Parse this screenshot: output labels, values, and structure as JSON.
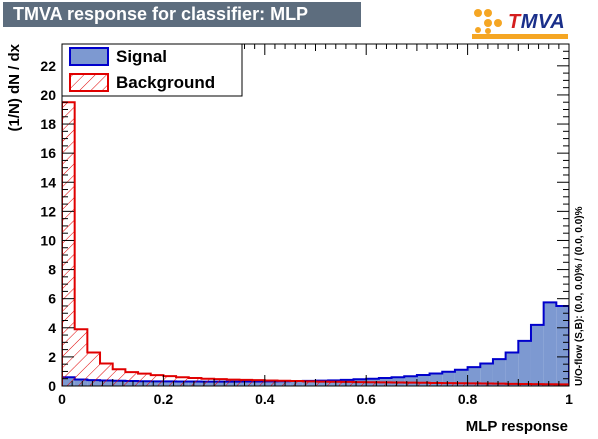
{
  "title": "TMVA response for classifier: MLP",
  "logo": {
    "t": "T",
    "rest": "MVA"
  },
  "colors": {
    "title_bg": "#5d6d7e",
    "signal_fill": "#7d99d1",
    "signal_line": "#0000cc",
    "background_line": "#e00000"
  },
  "side_note": "U/O-flow (S,B): (0.0, 0.0)% / (0.0, 0.0)%",
  "chart_data": {
    "type": "histogram",
    "title": "TMVA response for classifier: MLP",
    "xlabel": "MLP response",
    "ylabel": "(1/N) dN / dx",
    "xlim": [
      0,
      1
    ],
    "ylim": [
      0,
      23.5
    ],
    "xticks": [
      0,
      0.2,
      0.4,
      0.6,
      0.8,
      1
    ],
    "xtick_labels": [
      "0",
      "0.2",
      "0.4",
      "0.6",
      "0.8",
      "1"
    ],
    "yticks": [
      0,
      2,
      4,
      6,
      8,
      10,
      12,
      14,
      16,
      18,
      20,
      22
    ],
    "ytick_labels": [
      "0",
      "2",
      "4",
      "6",
      "8",
      "10",
      "12",
      "14",
      "16",
      "18",
      "20",
      "22"
    ],
    "legend": {
      "placement": "top-left"
    },
    "bin_edges": [
      0,
      0.025,
      0.05,
      0.075,
      0.1,
      0.125,
      0.15,
      0.175,
      0.2,
      0.225,
      0.25,
      0.275,
      0.3,
      0.325,
      0.35,
      0.375,
      0.4,
      0.425,
      0.45,
      0.475,
      0.5,
      0.525,
      0.55,
      0.575,
      0.6,
      0.625,
      0.65,
      0.675,
      0.7,
      0.725,
      0.75,
      0.775,
      0.8,
      0.825,
      0.85,
      0.875,
      0.9,
      0.925,
      0.95,
      0.975,
      1
    ],
    "series": [
      {
        "name": "Signal",
        "style": "filled",
        "values": [
          0.6,
          0.45,
          0.4,
          0.38,
          0.36,
          0.34,
          0.33,
          0.32,
          0.32,
          0.31,
          0.31,
          0.3,
          0.3,
          0.3,
          0.31,
          0.31,
          0.32,
          0.33,
          0.34,
          0.35,
          0.37,
          0.39,
          0.42,
          0.46,
          0.5,
          0.55,
          0.6,
          0.67,
          0.76,
          0.86,
          0.98,
          1.12,
          1.3,
          1.55,
          1.85,
          2.3,
          3.1,
          4.2,
          5.75,
          5.5
        ]
      },
      {
        "name": "Background",
        "style": "hatched",
        "values": [
          19.5,
          3.9,
          2.3,
          1.55,
          1.15,
          0.95,
          0.85,
          0.75,
          0.68,
          0.6,
          0.55,
          0.5,
          0.47,
          0.44,
          0.42,
          0.4,
          0.38,
          0.36,
          0.34,
          0.32,
          0.3,
          0.29,
          0.28,
          0.27,
          0.26,
          0.25,
          0.24,
          0.23,
          0.22,
          0.21,
          0.2,
          0.19,
          0.18,
          0.17,
          0.16,
          0.15,
          0.14,
          0.13,
          0.12,
          0.11
        ]
      }
    ]
  }
}
